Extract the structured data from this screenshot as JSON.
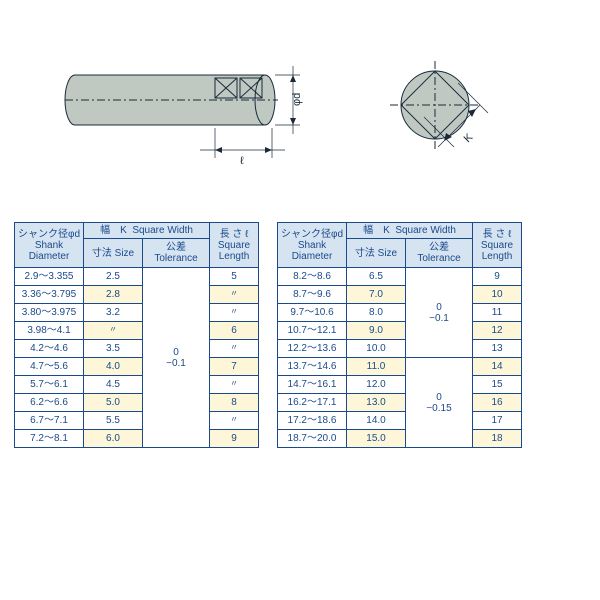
{
  "diagram": {
    "shank_fill": "#bfc9c2",
    "stroke": "#1a2a3a",
    "dim_stroke": "#1a2a3a",
    "font": "11px",
    "label_d": "φd",
    "label_l": "ℓ",
    "label_K": "K"
  },
  "headers": {
    "dia_jp": "シャンク径φd",
    "dia_en": "Shank\nDiameter",
    "width_jp": "幅　K",
    "width_en": "Square Width",
    "size_jp": "寸法",
    "size_en": "Size",
    "tol_jp": "公差",
    "tol_en": "Tolerance",
    "len_jp": "長 さ ℓ",
    "len_en": "Square\nLength"
  },
  "col": {
    "bg_header": "#d6e4f2",
    "bg_alt": "#fdf6d9",
    "border": "#1a4a8a",
    "text": "#1a4a8a"
  },
  "tableA": {
    "tolerance": "0\n−0.1",
    "rows": [
      {
        "dia": "2.9～3.355",
        "size": "2.5",
        "len": "5"
      },
      {
        "dia": "3.36～3.795",
        "size": "2.8",
        "len": "〃"
      },
      {
        "dia": "3.80～3.975",
        "size": "3.2",
        "len": "〃"
      },
      {
        "dia": "3.98～4.1",
        "size": "〃",
        "len": "6"
      },
      {
        "dia": "4.2～4.6",
        "size": "3.5",
        "len": "〃"
      },
      {
        "dia": "4.7～5.6",
        "size": "4.0",
        "len": "7"
      },
      {
        "dia": "5.7～6.1",
        "size": "4.5",
        "len": "〃"
      },
      {
        "dia": "6.2～6.6",
        "size": "5.0",
        "len": "8"
      },
      {
        "dia": "6.7～7.1",
        "size": "5.5",
        "len": "〃"
      },
      {
        "dia": "7.2～8.1",
        "size": "6.0",
        "len": "9"
      }
    ]
  },
  "tableB": {
    "tolerance1": "0\n−0.1",
    "tolerance2": "0\n−0.15",
    "split": 5,
    "rows": [
      {
        "dia": "8.2～8.6",
        "size": "6.5",
        "len": "9"
      },
      {
        "dia": "8.7～9.6",
        "size": "7.0",
        "len": "10"
      },
      {
        "dia": "9.7～10.6",
        "size": "8.0",
        "len": "11"
      },
      {
        "dia": "10.7～12.1",
        "size": "9.0",
        "len": "12"
      },
      {
        "dia": "12.2～13.6",
        "size": "10.0",
        "len": "13"
      },
      {
        "dia": "13.7～14.6",
        "size": "11.0",
        "len": "14"
      },
      {
        "dia": "14.7～16.1",
        "size": "12.0",
        "len": "15"
      },
      {
        "dia": "16.2～17.1",
        "size": "13.0",
        "len": "16"
      },
      {
        "dia": "17.2～18.6",
        "size": "14.0",
        "len": "17"
      },
      {
        "dia": "18.7～20.0",
        "size": "15.0",
        "len": "18"
      }
    ]
  }
}
